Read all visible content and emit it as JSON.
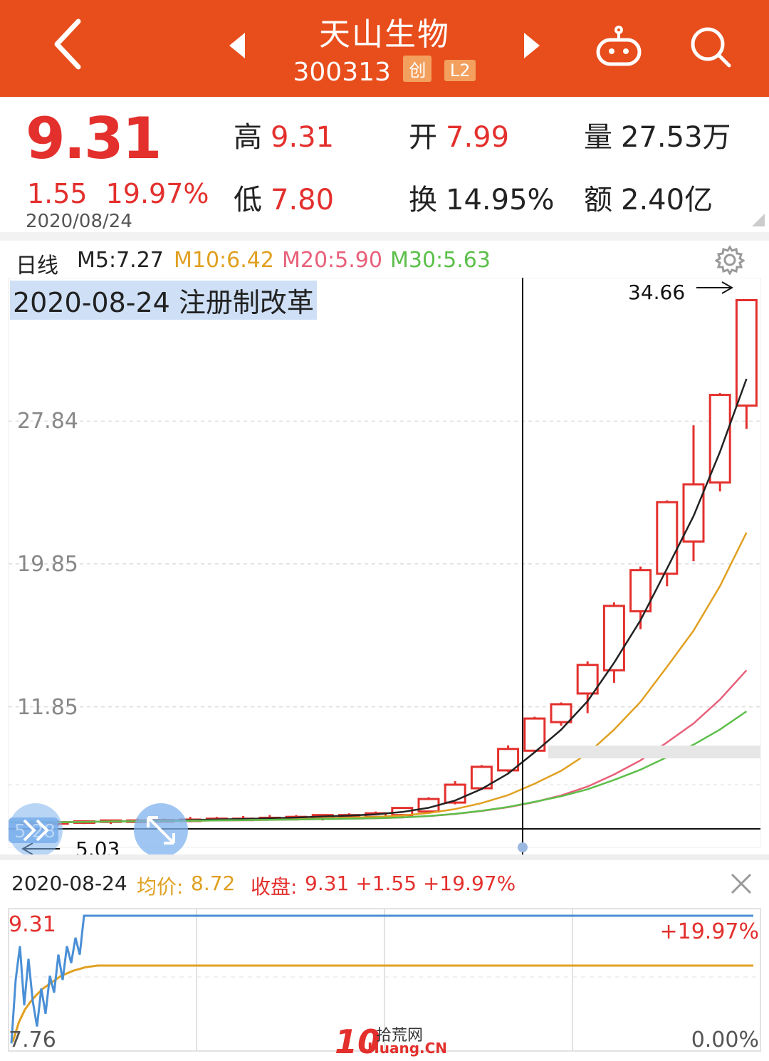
{
  "header": {
    "title": "天山生物",
    "code": "300313",
    "badge_board": "创",
    "badge_level": "L2",
    "bg_color": "#e84d1c",
    "icons": [
      "back-icon",
      "prev-icon",
      "next-icon",
      "robot-icon",
      "search-icon"
    ]
  },
  "quote": {
    "price": "9.31",
    "change": "1.55",
    "change_pct": "19.97%",
    "date": "2020/08/24",
    "high_label": "高",
    "high": "9.31",
    "open_label": "开",
    "open": "7.99",
    "volume_label": "量",
    "volume": "27.53万",
    "low_label": "低",
    "low": "7.80",
    "turnover_label": "换",
    "turnover": "14.95%",
    "amount_label": "额",
    "amount": "2.40亿"
  },
  "ma_row": {
    "period": "日线",
    "m5": "M5:7.27",
    "m10": "M10:6.42",
    "m20": "M20:5.90",
    "m30": "M30:5.63",
    "colors": {
      "m5": "#222222",
      "m10": "#e0a020",
      "m20": "#e8607a",
      "m30": "#5cbf4a"
    }
  },
  "annotation": "2020-08-24 注册制改革",
  "chart_data": [
    {
      "type": "candlestick",
      "y_ticks": [
        "27.84",
        "19.85",
        "11.85"
      ],
      "y_tick_values": [
        27.84,
        19.85,
        11.85
      ],
      "max_label": "34.66",
      "min_label": "5.03",
      "left_badge": "5.28",
      "ylim": [
        5.03,
        34.66
      ],
      "candles": [
        {
          "o": 5.3,
          "h": 5.5,
          "l": 5.2,
          "c": 5.4
        },
        {
          "o": 5.35,
          "h": 5.5,
          "l": 5.2,
          "c": 5.4
        },
        {
          "o": 5.4,
          "h": 5.5,
          "l": 5.3,
          "c": 5.45
        },
        {
          "o": 5.42,
          "h": 5.55,
          "l": 5.3,
          "c": 5.5
        },
        {
          "o": 5.5,
          "h": 5.6,
          "l": 5.4,
          "c": 5.5
        },
        {
          "o": 5.5,
          "h": 5.6,
          "l": 5.4,
          "c": 5.52
        },
        {
          "o": 5.5,
          "h": 5.7,
          "l": 5.4,
          "c": 5.55
        },
        {
          "o": 5.55,
          "h": 5.7,
          "l": 5.45,
          "c": 5.6
        },
        {
          "o": 5.6,
          "h": 5.75,
          "l": 5.5,
          "c": 5.6
        },
        {
          "o": 5.6,
          "h": 5.8,
          "l": 5.5,
          "c": 5.65
        },
        {
          "o": 5.62,
          "h": 5.8,
          "l": 5.5,
          "c": 5.7
        },
        {
          "o": 5.6,
          "h": 5.8,
          "l": 5.5,
          "c": 5.8
        },
        {
          "o": 5.7,
          "h": 5.9,
          "l": 5.6,
          "c": 5.8
        },
        {
          "o": 5.7,
          "h": 6.0,
          "l": 5.6,
          "c": 5.9
        },
        {
          "o": 5.8,
          "h": 6.2,
          "l": 5.7,
          "c": 6.2
        },
        {
          "o": 6.0,
          "h": 6.8,
          "l": 5.9,
          "c": 6.7
        },
        {
          "o": 6.5,
          "h": 7.7,
          "l": 6.4,
          "c": 7.5
        },
        {
          "o": 7.3,
          "h": 8.6,
          "l": 7.2,
          "c": 8.5
        },
        {
          "o": 8.3,
          "h": 9.7,
          "l": 8.2,
          "c": 9.5
        },
        {
          "o": 9.4,
          "h": 11.3,
          "l": 9.3,
          "c": 11.2
        },
        {
          "o": 11.0,
          "h": 12.1,
          "l": 10.8,
          "c": 12.0
        },
        {
          "o": 12.6,
          "h": 14.4,
          "l": 11.5,
          "c": 14.2
        },
        {
          "o": 13.9,
          "h": 17.7,
          "l": 13.2,
          "c": 17.5
        },
        {
          "o": 17.2,
          "h": 19.7,
          "l": 16.2,
          "c": 19.5
        },
        {
          "o": 19.3,
          "h": 23.4,
          "l": 18.6,
          "c": 23.3
        },
        {
          "o": 21.1,
          "h": 27.6,
          "l": 20.0,
          "c": 24.3
        },
        {
          "o": 24.4,
          "h": 29.4,
          "l": 23.9,
          "c": 29.3
        },
        {
          "o": 28.7,
          "h": 34.66,
          "l": 27.4,
          "c": 34.6
        }
      ],
      "ma5_end": 30.2,
      "ma10_end": 21.6,
      "ma20_end": 13.9,
      "ma30_end": 11.6
    },
    {
      "type": "line",
      "date": "2020-08-24",
      "avg_label": "均价:",
      "avg_value": "8.72",
      "close_label": "收盘:",
      "close_value": "9.31 +1.55 +19.97%",
      "y_top_label": "9.31",
      "y_bottom_label": "7.76",
      "pct_top_label": "+19.97%",
      "pct_bottom_label": "0.00%",
      "ylim": [
        7.76,
        9.31
      ],
      "price_series": [
        7.8,
        8.55,
        8.95,
        8.25,
        8.8,
        8.3,
        8.0,
        8.45,
        8.15,
        8.6,
        8.4,
        8.85,
        8.55,
        8.95,
        8.75,
        9.05,
        8.85,
        9.31,
        9.31,
        9.31,
        9.31,
        9.31,
        9.31
      ],
      "avg_series": [
        7.82,
        8.05,
        8.2,
        8.3,
        8.38,
        8.45,
        8.5,
        8.55,
        8.6,
        8.63,
        8.66,
        8.68,
        8.7,
        8.71,
        8.72,
        8.72,
        8.72
      ]
    }
  ],
  "watermark": {
    "logo": "10",
    "name": "拾荒网",
    "domain": "Huang.CN"
  }
}
